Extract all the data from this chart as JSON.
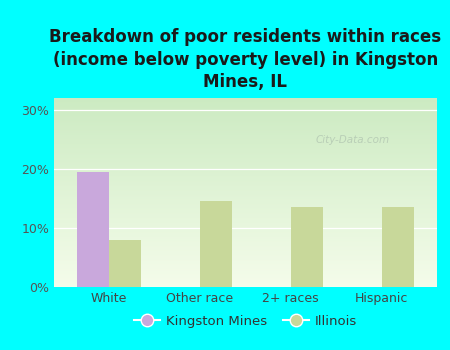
{
  "title": "Breakdown of poor residents within races\n(income below poverty level) in Kingston\nMines, IL",
  "categories": [
    "White",
    "Other race",
    "2+ races",
    "Hispanic"
  ],
  "kingston_mines": [
    19.5,
    0,
    0,
    0
  ],
  "illinois": [
    8.0,
    14.5,
    13.5,
    13.5
  ],
  "kingston_color": "#c9a8dc",
  "illinois_color": "#c8d89a",
  "background_color": "#00ffff",
  "ylim": [
    0,
    32
  ],
  "yticks": [
    0,
    10,
    20,
    30
  ],
  "ytick_labels": [
    "0%",
    "10%",
    "20%",
    "30%"
  ],
  "bar_width": 0.35,
  "title_fontsize": 12,
  "axis_label_fontsize": 9,
  "legend_label_km": "Kingston Mines",
  "legend_label_il": "Illinois",
  "watermark": "City-Data.com"
}
